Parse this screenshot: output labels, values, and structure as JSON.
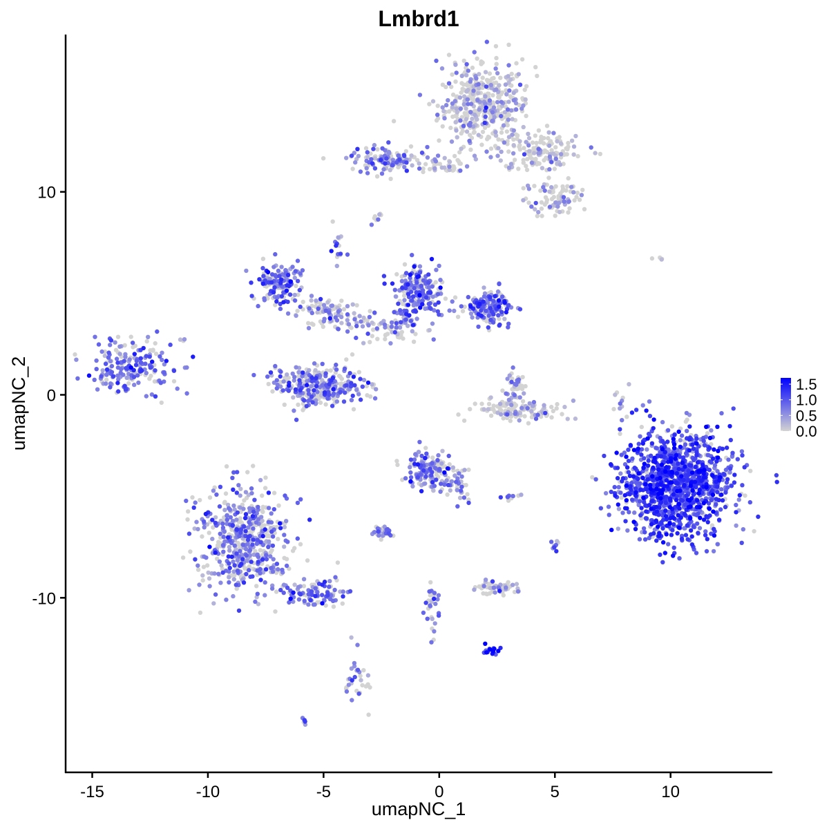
{
  "chart_data": {
    "type": "scatter",
    "title": "Lmbrd1",
    "xlabel": "umapNC_1",
    "ylabel": "umapNC_2",
    "xlim": [
      -16.15,
      14.4
    ],
    "ylim": [
      -18.6,
      17.75
    ],
    "xticks": [
      -15,
      -10,
      -5,
      0,
      5,
      10
    ],
    "xtick_labels": [
      "-15",
      "-10",
      "-5",
      "0",
      "5",
      "10"
    ],
    "yticks": [
      -10,
      0,
      10
    ],
    "ytick_labels": [
      "-10",
      "0",
      "10"
    ],
    "grid": false,
    "legend": {
      "placement": "right",
      "type": "colorbar",
      "ticks": [
        0.0,
        0.5,
        1.0,
        1.5
      ],
      "tick_labels": [
        "0.0",
        "0.5",
        "1.0",
        "1.5"
      ],
      "range": [
        0,
        1.7
      ]
    },
    "colors": {
      "low": "#d3d3d3",
      "high": "#0000ff"
    },
    "clusters": [
      {
        "x": 1.9,
        "y": 14.3,
        "sx": 1.2,
        "sy": 1.2,
        "n": 420,
        "expr": 0.15
      },
      {
        "x": 4.3,
        "y": 12.0,
        "sx": 1.2,
        "sy": 0.6,
        "n": 150,
        "expr": 0.15
      },
      {
        "x": 5.0,
        "y": 9.6,
        "sx": 0.7,
        "sy": 0.6,
        "n": 80,
        "expr": 0.2
      },
      {
        "x": -2.3,
        "y": 11.6,
        "sx": 0.9,
        "sy": 0.4,
        "n": 120,
        "expr": 0.5
      },
      {
        "x": 0.1,
        "y": 11.3,
        "sx": 0.8,
        "sy": 0.25,
        "n": 40,
        "expr": 0.15
      },
      {
        "x": -2.7,
        "y": 8.7,
        "sx": 0.2,
        "sy": 0.2,
        "n": 8,
        "expr": 0.3
      },
      {
        "x": -4.4,
        "y": 7.2,
        "sx": 0.2,
        "sy": 0.5,
        "n": 15,
        "expr": 0.6
      },
      {
        "x": -6.9,
        "y": 5.5,
        "sx": 0.6,
        "sy": 0.6,
        "n": 150,
        "expr": 0.6
      },
      {
        "x": -5.0,
        "y": 4.1,
        "sx": 0.8,
        "sy": 0.4,
        "n": 80,
        "expr": 0.4
      },
      {
        "x": -0.9,
        "y": 5.1,
        "sx": 0.7,
        "sy": 0.9,
        "n": 200,
        "expr": 0.6
      },
      {
        "x": 2.1,
        "y": 4.3,
        "sx": 0.6,
        "sy": 0.5,
        "n": 150,
        "expr": 0.7
      },
      {
        "x": -2.3,
        "y": 3.4,
        "sx": 1.5,
        "sy": 0.5,
        "n": 100,
        "expr": 0.3
      },
      {
        "x": -5.1,
        "y": 0.4,
        "sx": 1.2,
        "sy": 0.6,
        "n": 300,
        "expr": 0.5
      },
      {
        "x": -13.3,
        "y": 1.4,
        "sx": 1.1,
        "sy": 0.8,
        "n": 200,
        "expr": 0.6
      },
      {
        "x": 3.3,
        "y": 0.4,
        "sx": 0.3,
        "sy": 0.5,
        "n": 40,
        "expr": 0.3
      },
      {
        "x": 3.4,
        "y": -0.8,
        "sx": 1.2,
        "sy": 0.3,
        "n": 120,
        "expr": 0.1
      },
      {
        "x": 10.3,
        "y": -4.4,
        "sx": 1.5,
        "sy": 1.6,
        "n": 1200,
        "expr": 0.9
      },
      {
        "x": -0.5,
        "y": -3.7,
        "sx": 0.6,
        "sy": 0.6,
        "n": 150,
        "expr": 0.5
      },
      {
        "x": 0.9,
        "y": -4.4,
        "sx": 0.4,
        "sy": 0.5,
        "n": 40,
        "expr": 0.5
      },
      {
        "x": -8.5,
        "y": -7.1,
        "sx": 1.2,
        "sy": 1.6,
        "n": 500,
        "expr": 0.5
      },
      {
        "x": -5.3,
        "y": -9.8,
        "sx": 0.9,
        "sy": 0.4,
        "n": 100,
        "expr": 0.6
      },
      {
        "x": -3.5,
        "y": -13.9,
        "sx": 0.3,
        "sy": 0.8,
        "n": 30,
        "expr": 0.4
      },
      {
        "x": -2.4,
        "y": -6.8,
        "sx": 0.3,
        "sy": 0.2,
        "n": 30,
        "expr": 0.5
      },
      {
        "x": 2.4,
        "y": -9.5,
        "sx": 0.6,
        "sy": 0.2,
        "n": 60,
        "expr": 0.3
      },
      {
        "x": -0.3,
        "y": -10.5,
        "sx": 0.2,
        "sy": 1.0,
        "n": 30,
        "expr": 0.6
      },
      {
        "x": 2.2,
        "y": -12.6,
        "sx": 0.3,
        "sy": 0.2,
        "n": 15,
        "expr": 1.2
      },
      {
        "x": -5.9,
        "y": -16.1,
        "sx": 0.1,
        "sy": 0.1,
        "n": 5,
        "expr": 0.5
      },
      {
        "x": 9.4,
        "y": 6.7,
        "sx": 0.2,
        "sy": 0.1,
        "n": 4,
        "expr": 0.1
      },
      {
        "x": 7.8,
        "y": -0.3,
        "sx": 0.2,
        "sy": 0.5,
        "n": 10,
        "expr": 0.2
      },
      {
        "x": 5.0,
        "y": -7.3,
        "sx": 0.1,
        "sy": 0.3,
        "n": 8,
        "expr": 0.8
      },
      {
        "x": 3.1,
        "y": -5.0,
        "sx": 0.3,
        "sy": 0.1,
        "n": 10,
        "expr": 0.4
      },
      {
        "x": -11.2,
        "y": 2.8,
        "sx": 0.2,
        "sy": 0.2,
        "n": 3,
        "expr": 0.2
      }
    ]
  }
}
